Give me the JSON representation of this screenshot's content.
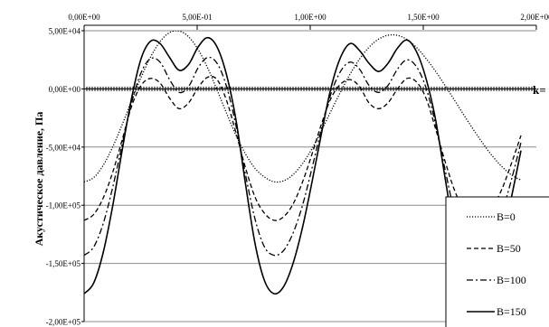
{
  "chart_data": {
    "type": "line",
    "xlabel": "",
    "ylabel": "Акустическое давление, Па",
    "x_axis_position": "top",
    "xlim": [
      0,
      2.0
    ],
    "ylim": [
      -200000,
      50000
    ],
    "x_ticks": [
      "0,00E+00",
      "5,00E-01",
      "1,00E+00",
      "1,50E+00",
      "2,00E+00"
    ],
    "y_ticks": [
      "5,00E+04",
      "0,00E+00",
      "-5,00E+04",
      "-1,00E+05",
      "-1,50E+05",
      "-2,00E+05"
    ],
    "grid": "horizontal",
    "annotation": "k=",
    "legend_position": "bottom-right",
    "series": [
      {
        "name": "B=0",
        "dash": "dotted",
        "x": [
          0,
          0.042,
          0.084,
          0.126,
          0.168,
          0.21,
          0.252,
          0.294,
          0.336,
          0.378,
          0.42,
          0.462,
          0.504,
          0.546,
          0.588,
          0.63,
          0.672,
          0.714,
          0.756,
          0.798,
          0.84,
          0.882,
          0.924,
          0.966,
          1.008,
          1.05,
          1.092,
          1.134,
          1.176,
          1.218,
          1.26,
          1.302,
          1.344,
          1.386,
          1.428,
          1.47,
          1.512,
          1.554,
          1.596,
          1.638,
          1.68,
          1.722,
          1.764,
          1.806,
          1.848,
          1.89,
          1.932
        ],
        "y": [
          -80000,
          -76300,
          -65800,
          -50100,
          -30900,
          -10100,
          9900,
          27400,
          40700,
          48400,
          49800,
          44800,
          33900,
          18200,
          -900,
          -20900,
          -40000,
          -56000,
          -68300,
          -75800,
          -79800,
          -79000,
          -73700,
          -64200,
          -51300,
          -35700,
          -19000,
          -2600,
          12600,
          25600,
          35800,
          42700,
          46100,
          46000,
          42400,
          35600,
          26200,
          15200,
          3000,
          -9700,
          -22600,
          -35100,
          -47000,
          -57800,
          -66900,
          -73900,
          -78400
        ]
      },
      {
        "name": "B=50",
        "dash": "dashed",
        "x": [
          0,
          0.042,
          0.084,
          0.126,
          0.168,
          0.21,
          0.252,
          0.294,
          0.336,
          0.378,
          0.42,
          0.462,
          0.504,
          0.546,
          0.588,
          0.63,
          0.672,
          0.714,
          0.756,
          0.798,
          0.84,
          0.882,
          0.924,
          0.966,
          1.008,
          1.05,
          1.092,
          1.134,
          1.176,
          1.218,
          1.26,
          1.302,
          1.344,
          1.386,
          1.428,
          1.47,
          1.512,
          1.554,
          1.596,
          1.638,
          1.68,
          1.722,
          1.764,
          1.806,
          1.848,
          1.89,
          1.932
        ],
        "y": [
          -113000,
          -108000,
          -94000,
          -72000,
          -44000,
          -15000,
          3000,
          9000,
          5000,
          -8000,
          -17000,
          -12000,
          1000,
          10000,
          8000,
          -10000,
          -38000,
          -68000,
          -93000,
          -107000,
          -113000,
          -110000,
          -99000,
          -80000,
          -56000,
          -30000,
          -8000,
          4000,
          8000,
          2000,
          -12000,
          -17000,
          -12000,
          0,
          9000,
          6000,
          -8000,
          -34000,
          -62000,
          -87000,
          -104000,
          -112000,
          -111000,
          -102000,
          -86000,
          -64000,
          -40000
        ]
      },
      {
        "name": "B=100",
        "dash": "dashdot",
        "x": [
          0,
          0.042,
          0.084,
          0.126,
          0.168,
          0.21,
          0.252,
          0.294,
          0.336,
          0.378,
          0.42,
          0.462,
          0.504,
          0.546,
          0.588,
          0.63,
          0.672,
          0.714,
          0.756,
          0.798,
          0.84,
          0.882,
          0.924,
          0.966,
          1.008,
          1.05,
          1.092,
          1.134,
          1.176,
          1.218,
          1.26,
          1.302,
          1.344,
          1.386,
          1.428,
          1.47,
          1.512,
          1.554,
          1.596,
          1.638,
          1.68,
          1.722,
          1.764,
          1.806,
          1.848,
          1.89,
          1.932
        ],
        "y": [
          -143000,
          -136000,
          -116000,
          -85000,
          -48000,
          -12000,
          14000,
          26000,
          23000,
          8000,
          -3000,
          2000,
          18000,
          27000,
          22000,
          2000,
          -32000,
          -74000,
          -112000,
          -136000,
          -143000,
          -139000,
          -124000,
          -100000,
          -68000,
          -34000,
          -4000,
          15000,
          23000,
          17000,
          3000,
          -3000,
          3000,
          17000,
          25000,
          19000,
          1000,
          -30000,
          -69000,
          -106000,
          -131000,
          -142000,
          -140000,
          -128000,
          -106000,
          -78000,
          -46000
        ]
      },
      {
        "name": "B=150",
        "dash": "solid",
        "x": [
          0,
          0.042,
          0.084,
          0.126,
          0.168,
          0.21,
          0.252,
          0.294,
          0.336,
          0.378,
          0.42,
          0.462,
          0.504,
          0.546,
          0.588,
          0.63,
          0.672,
          0.714,
          0.756,
          0.798,
          0.84,
          0.882,
          0.924,
          0.966,
          1.008,
          1.05,
          1.092,
          1.134,
          1.176,
          1.218,
          1.26,
          1.302,
          1.344,
          1.386,
          1.428,
          1.47,
          1.512,
          1.554,
          1.596,
          1.638,
          1.68,
          1.722,
          1.764,
          1.806,
          1.848,
          1.89,
          1.932
        ],
        "y": [
          -176000,
          -167000,
          -141000,
          -101000,
          -53000,
          -8000,
          26000,
          41000,
          39000,
          27000,
          16000,
          21000,
          36000,
          44000,
          36000,
          12000,
          -27000,
          -82000,
          -133000,
          -165000,
          -176000,
          -170000,
          -150000,
          -119000,
          -80000,
          -38000,
          1000,
          27000,
          39000,
          33000,
          22000,
          15000,
          22000,
          35000,
          42000,
          32000,
          9000,
          -26000,
          -76000,
          -125000,
          -159000,
          -175000,
          -173000,
          -157000,
          -130000,
          -93000,
          -53000
        ]
      }
    ]
  }
}
